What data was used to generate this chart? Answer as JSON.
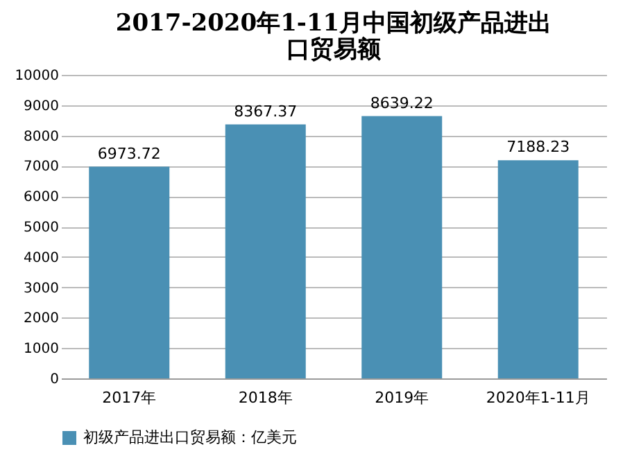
{
  "chart_data": {
    "type": "bar",
    "title": "2017-2020年1-11月中国初级产品进出口贸易额",
    "categories": [
      "2017年",
      "2018年",
      "2019年",
      "2020年1-11月"
    ],
    "series": [
      {
        "name": "初级产品进出口贸易额：亿美元",
        "color": "#4a90b4",
        "values": [
          6973.72,
          8367.37,
          8639.22,
          7188.23
        ]
      }
    ],
    "ylim": [
      0,
      10000
    ],
    "yticks": [
      0,
      1000,
      2000,
      3000,
      4000,
      5000,
      6000,
      7000,
      8000,
      9000,
      10000
    ],
    "grid": "y",
    "legend": "bottom",
    "data_labels": true
  }
}
